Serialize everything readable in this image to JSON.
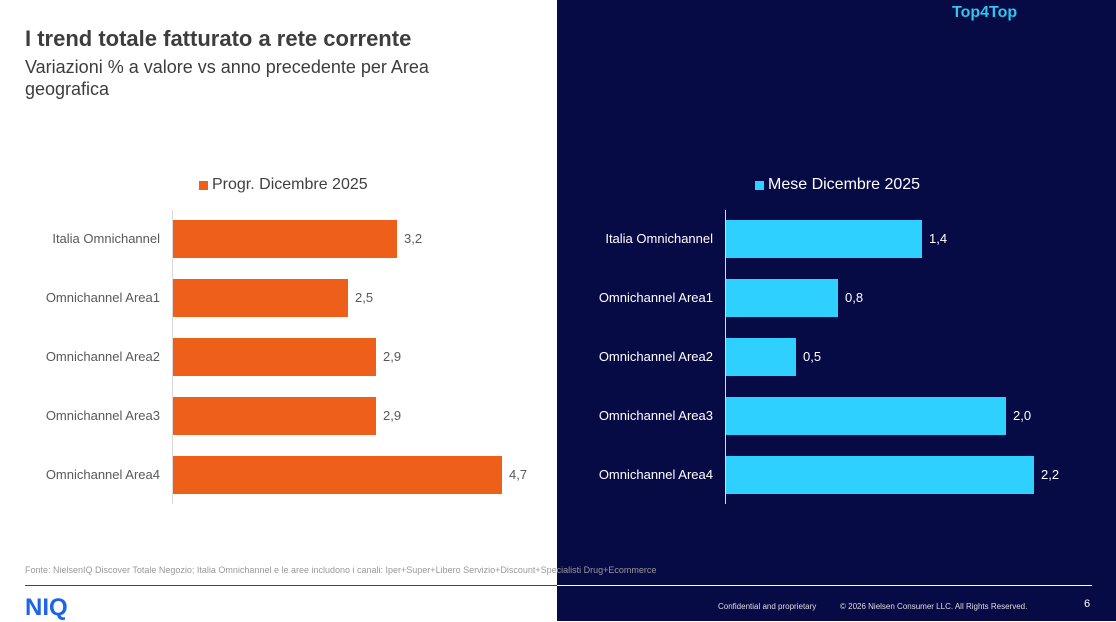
{
  "title": "I trend totale fatturato a rete corrente",
  "subtitle": "Variazioni % a valore vs anno precedente per Area geografica",
  "brand": "Top4Top",
  "chart_data": [
    {
      "type": "bar",
      "orientation": "horizontal",
      "legend": "Progr. Dicembre 2025",
      "color": "#ee5f1a",
      "categories": [
        "Italia Omnichannel",
        "Omnichannel Area1",
        "Omnichannel Area2",
        "Omnichannel Area3",
        "Omnichannel Area4"
      ],
      "values": [
        3.2,
        2.5,
        2.9,
        2.9,
        4.7
      ],
      "labels": [
        "3,2",
        "2,5",
        "2,9",
        "2,9",
        "4,7"
      ]
    },
    {
      "type": "bar",
      "orientation": "horizontal",
      "legend": "Mese Dicembre 2025",
      "color": "#2ed0ff",
      "categories": [
        "Italia Omnichannel",
        "Omnichannel Area1",
        "Omnichannel Area2",
        "Omnichannel Area3",
        "Omnichannel Area4"
      ],
      "values": [
        1.4,
        0.8,
        0.5,
        2.0,
        2.2
      ],
      "labels": [
        "1,4",
        "0,8",
        "0,5",
        "2,0",
        "2,2"
      ]
    }
  ],
  "footer": {
    "source": "Fonte: NielsenIQ Discover Totale Negozio; Italia Omnichannel e le aree includono i canali: Iper+Super+Libero Servizio+Discount+Specialisti Drug+Ecommerce",
    "logo": "NIQ",
    "confidential": "Confidential and proprietary",
    "copyright": "© 2026 Nielsen Consumer LLC. All Rights Reserved.",
    "page": "6"
  }
}
